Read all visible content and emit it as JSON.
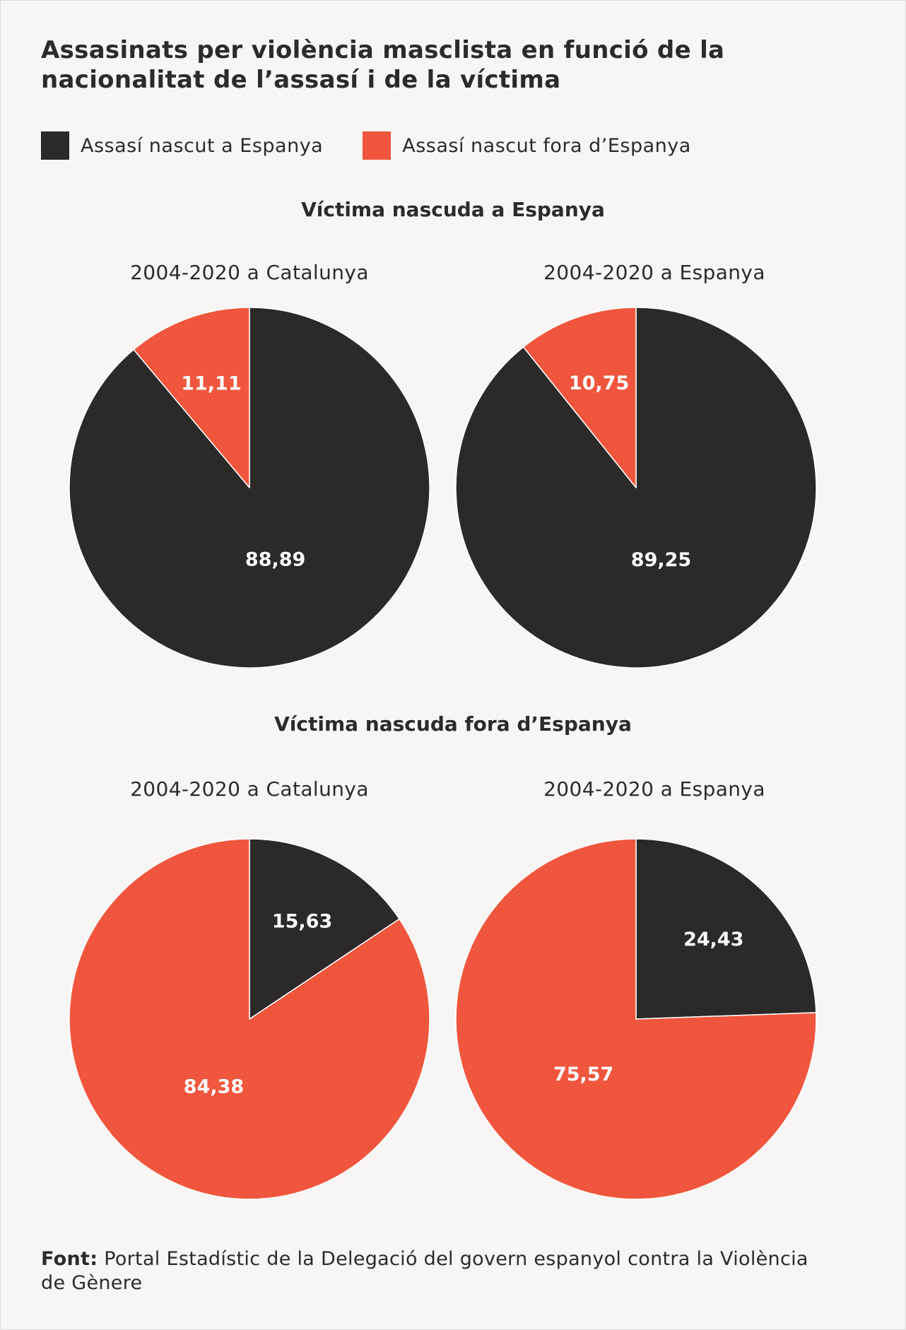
{
  "title": "Assasinats per violència masclista en funció de la nacionalitat de l’assasí i de la víctima",
  "legend": [
    {
      "label": "Assasí nascut a Espanya",
      "color": "#2b2a29"
    },
    {
      "label": "Assasí nascut fora d’Espanya",
      "color": "#f0563d"
    }
  ],
  "source": {
    "label": "Font:",
    "text": "Portal Estadístic de la Delegació del govern espanyol contra la Violència de Gènere"
  },
  "chart_data": [
    {
      "type": "pie",
      "group": "Víctima nascuda a Espanya",
      "title": "2004-2020 a Catalunya",
      "categories": [
        "Assasí nascut a Espanya",
        "Assasí nascut fora d’Espanya"
      ],
      "values": [
        88.89,
        11.11
      ],
      "labels": [
        "88,89",
        "11,11"
      ]
    },
    {
      "type": "pie",
      "group": "Víctima nascuda a Espanya",
      "title": "2004-2020 a Espanya",
      "categories": [
        "Assasí nascut a Espanya",
        "Assasí nascut fora d’Espanya"
      ],
      "values": [
        89.25,
        10.75
      ],
      "labels": [
        "89,25",
        "10,75"
      ]
    },
    {
      "type": "pie",
      "group": "Víctima nascuda fora d’Espanya",
      "title": "2004-2020 a Catalunya",
      "categories": [
        "Assasí nascut a Espanya",
        "Assasí nascut fora d’Espanya"
      ],
      "values": [
        15.63,
        84.38
      ],
      "labels": [
        "15,63",
        "84,38"
      ]
    },
    {
      "type": "pie",
      "group": "Víctima nascuda fora d’Espanya",
      "title": "2004-2020 a Espanya",
      "categories": [
        "Assasí nascut a Espanya",
        "Assasí nascut fora d’Espanya"
      ],
      "values": [
        24.43,
        75.57
      ],
      "labels": [
        "24,43",
        "75,57"
      ]
    }
  ]
}
